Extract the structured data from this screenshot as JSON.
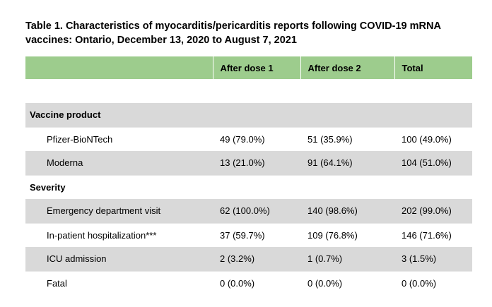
{
  "title": "Table 1. Characteristics of myocarditis/pericarditis reports following COVID-19 mRNA vaccines: Ontario, December 13, 2020 to August 7, 2021",
  "table": {
    "headers": [
      "",
      "After dose 1",
      "After dose 2",
      "Total"
    ],
    "sections": [
      {
        "label": "Vaccine product",
        "rows": [
          {
            "label": "Pfizer-BioNTech",
            "values": [
              "49 (79.0%)",
              "51 (35.9%)",
              "100 (49.0%)"
            ]
          },
          {
            "label": "Moderna",
            "values": [
              "13 (21.0%)",
              "91 (64.1%)",
              "104 (51.0%)"
            ]
          }
        ]
      },
      {
        "label": "Severity",
        "rows": [
          {
            "label": "Emergency department visit",
            "values": [
              "62 (100.0%)",
              "140 (98.6%)",
              "202 (99.0%)"
            ]
          },
          {
            "label": "In-patient hospitalization***",
            "values": [
              "37 (59.7%)",
              "109 (76.8%)",
              "146 (71.6%)"
            ]
          },
          {
            "label": "ICU admission",
            "values": [
              "2 (3.2%)",
              "1 (0.7%)",
              "3 (1.5%)"
            ]
          },
          {
            "label": "Fatal",
            "values": [
              "0 (0.0%)",
              "0 (0.0%)",
              "0 (0.0%)"
            ]
          }
        ]
      }
    ]
  },
  "colors": {
    "header_bg": "#9dcc8d",
    "shade_bg": "#d9d9d9"
  }
}
